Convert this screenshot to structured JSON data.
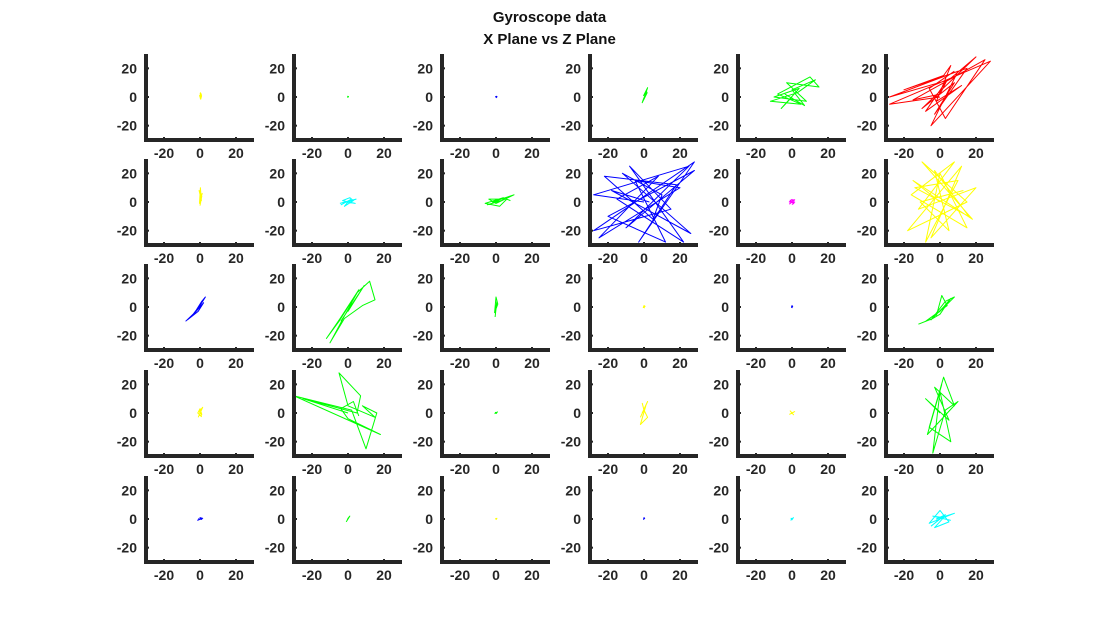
{
  "figure": {
    "title_line1": "Gyroscope data",
    "title_line2": "X Plane vs Z Plane"
  },
  "colors": {
    "yellow": "#ffff00",
    "green": "#00ff00",
    "blue": "#0000ff",
    "red": "#ff0000",
    "cyan": "#00ffff",
    "magenta": "#ff00ff",
    "axis": "#262626"
  },
  "axes_common": {
    "xlim": [
      -30,
      30
    ],
    "ylim": [
      -30,
      30
    ],
    "xticks": [
      -20,
      0,
      20
    ],
    "yticks": [
      -20,
      0,
      20
    ],
    "xtick_labels": [
      "-20",
      "0",
      "20"
    ],
    "ytick_labels": [
      "20",
      "0",
      "-20"
    ],
    "box": false,
    "grid": false
  },
  "chart_data": [
    {
      "type": "line",
      "row": 1,
      "col": 1,
      "color": "yellow",
      "series": [
        {
          "x": [
            0.5,
            0.2,
            0.8,
            0.1,
            0.6,
            -0.2,
            0.4,
            0.9,
            0.1,
            0.5
          ],
          "y": [
            0.5,
            3.0,
            1.5,
            -0.8,
            2.2,
            1.0,
            -1.5,
            0.8,
            2.6,
            0.2
          ]
        }
      ]
    },
    {
      "type": "line",
      "row": 1,
      "col": 2,
      "color": "green",
      "series": [
        {
          "x": [
            -0.3,
            0.2,
            -0.1,
            0.3,
            -0.2,
            0.1
          ],
          "y": [
            0.0,
            0.4,
            -0.3,
            0.2,
            0.5,
            -0.2
          ]
        }
      ]
    },
    {
      "type": "line",
      "row": 1,
      "col": 3,
      "color": "blue",
      "series": [
        {
          "x": [
            -0.4,
            0.3,
            0.1,
            0.6,
            -0.2,
            0.4
          ],
          "y": [
            0.0,
            0.5,
            -0.4,
            0.2,
            0.3,
            -0.1
          ]
        }
      ]
    },
    {
      "type": "line",
      "row": 1,
      "col": 4,
      "color": "green",
      "series": [
        {
          "x": [
            -0.5,
            1.5,
            -0.2,
            2.0,
            0.3,
            -1.0,
            1.8,
            0.0,
            -0.8,
            1.0
          ],
          "y": [
            -2.0,
            4.0,
            1.0,
            6.5,
            0.0,
            -4.0,
            3.0,
            -1.5,
            -3.0,
            2.0
          ]
        }
      ]
    },
    {
      "type": "line",
      "row": 1,
      "col": 5,
      "color": "green",
      "series": [
        {
          "x": [
            0,
            -6,
            4,
            -10,
            8,
            -3,
            15,
            10,
            -8,
            5,
            -12,
            3,
            13,
            0,
            7,
            -4
          ],
          "y": [
            0,
            -8,
            6,
            0,
            -3,
            10,
            7,
            14,
            2,
            -5,
            -3,
            3,
            12,
            5,
            -6,
            2
          ]
        }
      ]
    },
    {
      "type": "line",
      "row": 1,
      "col": 6,
      "color": "red",
      "series": [
        {
          "x": [
            0,
            -28,
            28,
            -5,
            10,
            -28,
            5,
            20,
            -10,
            8,
            -3,
            15,
            -20,
            2,
            6,
            -2,
            12,
            -8,
            4,
            0,
            -15,
            25,
            3,
            -6,
            8
          ],
          "y": [
            0,
            -5,
            25,
            -20,
            18,
            0,
            12,
            28,
            -8,
            10,
            -12,
            20,
            5,
            15,
            22,
            -3,
            8,
            -10,
            12,
            2,
            -2,
            26,
            -15,
            6,
            18
          ]
        }
      ]
    },
    {
      "type": "line",
      "row": 2,
      "col": 1,
      "color": "yellow",
      "series": [
        {
          "x": [
            0.0,
            1.0,
            -0.5,
            0.8,
            0.2,
            -0.3,
            1.2,
            0.4
          ],
          "y": [
            -2.5,
            4.0,
            8.0,
            1.0,
            10.0,
            -1.0,
            6.0,
            2.0
          ]
        }
      ]
    },
    {
      "type": "line",
      "row": 2,
      "col": 2,
      "color": "cyan",
      "series": [
        {
          "x": [
            -4,
            2,
            -1,
            4,
            -3,
            1,
            3,
            -2,
            0,
            4.5,
            -4.5
          ],
          "y": [
            -2,
            2,
            0,
            -1,
            1,
            3,
            1,
            -3,
            0,
            2,
            -1
          ]
        }
      ]
    },
    {
      "type": "line",
      "row": 2,
      "col": 3,
      "color": "green",
      "series": [
        {
          "x": [
            -5,
            3,
            -2,
            10,
            0,
            -4,
            6,
            2,
            -6,
            4,
            8
          ],
          "y": [
            -2,
            1,
            0,
            5,
            -1,
            2,
            2,
            -3,
            -1,
            3,
            1
          ]
        }
      ]
    },
    {
      "type": "line",
      "row": 2,
      "col": 4,
      "color": "blue",
      "series": [
        {
          "x": [
            0,
            -28,
            25,
            -10,
            28,
            -20,
            12,
            -5,
            20,
            -25,
            8,
            -15,
            22,
            -8,
            15,
            -28,
            28,
            -3,
            18,
            -22,
            5,
            10,
            -12,
            26,
            -18,
            3
          ],
          "y": [
            0,
            5,
            25,
            -18,
            22,
            -10,
            -28,
            15,
            10,
            -25,
            18,
            2,
            -28,
            25,
            -5,
            -20,
            28,
            -28,
            12,
            18,
            -12,
            5,
            20,
            -22,
            8,
            0
          ]
        }
      ]
    },
    {
      "type": "line",
      "row": 2,
      "col": 5,
      "color": "magenta",
      "series": [
        {
          "x": [
            -1.5,
            1.5,
            -1.0,
            1.0,
            0.0,
            -1.5,
            1.5,
            0.0
          ],
          "y": [
            -1.5,
            1.5,
            1.2,
            -1.2,
            1.8,
            0.0,
            0.0,
            -1.8
          ]
        }
      ]
    },
    {
      "type": "line",
      "row": 2,
      "col": 6,
      "color": "yellow",
      "series": [
        {
          "x": [
            0,
            -15,
            18,
            -10,
            15,
            -18,
            12,
            -5,
            20,
            -12,
            8,
            -16,
            15,
            0,
            -8,
            10,
            -14,
            16,
            -3,
            5,
            -11,
            13
          ],
          "y": [
            0,
            15,
            -12,
            28,
            0,
            -20,
            25,
            -25,
            10,
            -5,
            28,
            5,
            -18,
            20,
            -28,
            15,
            10,
            -10,
            22,
            -20,
            0,
            8
          ]
        }
      ]
    },
    {
      "type": "line",
      "row": 3,
      "col": 1,
      "color": "blue",
      "series": [
        {
          "x": [
            -8,
            -3,
            0,
            3,
            1,
            -2,
            -5,
            0,
            2,
            -1,
            -7,
            -4
          ],
          "y": [
            -10,
            -4,
            1,
            7,
            4,
            -2,
            -7,
            0,
            3,
            -3,
            -9,
            -6
          ]
        }
      ]
    },
    {
      "type": "line",
      "row": 3,
      "col": 2,
      "color": "green",
      "series": [
        {
          "x": [
            0,
            -12,
            -5,
            5,
            12,
            15,
            8,
            -2,
            -10,
            2,
            6,
            -8,
            3,
            0,
            9,
            -4
          ],
          "y": [
            0,
            -22,
            -10,
            10,
            18,
            5,
            1,
            -8,
            -25,
            3,
            12,
            -15,
            6,
            -3,
            15,
            -10
          ]
        }
      ]
    },
    {
      "type": "line",
      "row": 3,
      "col": 3,
      "color": "green",
      "series": [
        {
          "x": [
            -0.5,
            0.5,
            -0.2,
            1.0,
            0.0,
            -0.8,
            0.4
          ],
          "y": [
            -7.0,
            4.0,
            -2.0,
            2.0,
            7.0,
            -4.0,
            0.0
          ]
        }
      ]
    },
    {
      "type": "line",
      "row": 3,
      "col": 4,
      "color": "yellow",
      "series": [
        {
          "x": [
            -0.6,
            0.6,
            0.0,
            -0.3,
            0.4
          ],
          "y": [
            -0.5,
            0.5,
            1.0,
            0.0,
            -0.8
          ]
        }
      ]
    },
    {
      "type": "line",
      "row": 3,
      "col": 5,
      "color": "blue",
      "series": [
        {
          "x": [
            -0.4,
            0.4,
            0.0,
            -0.3,
            0.3
          ],
          "y": [
            -0.5,
            0.4,
            1.0,
            0.0,
            -0.6
          ]
        }
      ]
    },
    {
      "type": "line",
      "row": 3,
      "col": 6,
      "color": "green",
      "series": [
        {
          "x": [
            -12,
            -4,
            0,
            6,
            2,
            -5,
            3,
            8,
            0,
            -8,
            4,
            1,
            -2
          ],
          "y": [
            -12,
            -8,
            -5,
            6,
            0,
            -9,
            4,
            7,
            -3,
            -10,
            1,
            8,
            -6
          ]
        }
      ]
    },
    {
      "type": "line",
      "row": 4,
      "col": 1,
      "color": "yellow",
      "series": [
        {
          "x": [
            -1.0,
            1.5,
            -0.5,
            1.0,
            0.0,
            -1.2,
            0.8,
            0.3
          ],
          "y": [
            -3.0,
            4.0,
            1.0,
            -1.0,
            3.0,
            0.0,
            -2.5,
            2.0
          ]
        }
      ]
    },
    {
      "type": "line",
      "row": 4,
      "col": 2,
      "color": "green",
      "series": [
        {
          "x": [
            0,
            -25,
            5,
            7,
            -5,
            0,
            15,
            8,
            16,
            10,
            2,
            -30,
            18,
            0,
            -4,
            3,
            6
          ],
          "y": [
            0,
            10,
            0,
            12,
            28,
            5,
            -3,
            5,
            0,
            -25,
            2,
            12,
            -15,
            -4,
            3,
            8,
            -2
          ]
        }
      ]
    },
    {
      "type": "line",
      "row": 4,
      "col": 3,
      "color": "green",
      "series": [
        {
          "x": [
            -0.8,
            0.8,
            0.2,
            -0.4,
            0.6
          ],
          "y": [
            -0.5,
            0.8,
            -0.3,
            0.4,
            0.0
          ]
        }
      ]
    },
    {
      "type": "line",
      "row": 4,
      "col": 4,
      "color": "yellow",
      "series": [
        {
          "x": [
            -2,
            2,
            -1,
            1,
            -2,
            2,
            0,
            -1
          ],
          "y": [
            -3,
            8,
            0,
            5,
            -8,
            -3,
            2,
            7
          ]
        }
      ]
    },
    {
      "type": "line",
      "row": 4,
      "col": 5,
      "color": "yellow",
      "series": [
        {
          "x": [
            -1.5,
            1.5,
            0.0,
            -1.0,
            1.0
          ],
          "y": [
            -1.0,
            1.0,
            0.0,
            1.5,
            -1.5
          ]
        }
      ]
    },
    {
      "type": "line",
      "row": 4,
      "col": 6,
      "color": "green",
      "series": [
        {
          "x": [
            0,
            -8,
            5,
            -3,
            8,
            2,
            -6,
            6,
            0,
            -4,
            3,
            10,
            -7,
            1
          ],
          "y": [
            0,
            10,
            -5,
            18,
            5,
            25,
            -10,
            -20,
            15,
            -28,
            2,
            8,
            -15,
            20
          ]
        }
      ]
    },
    {
      "type": "line",
      "row": 5,
      "col": 1,
      "color": "blue",
      "series": [
        {
          "x": [
            -1.5,
            1.5,
            0.0,
            1.0,
            -1.0
          ],
          "y": [
            -1.0,
            0.5,
            1.0,
            -0.3,
            0.2
          ]
        }
      ]
    },
    {
      "type": "line",
      "row": 5,
      "col": 2,
      "color": "green",
      "series": [
        {
          "x": [
            -1.0,
            1.0,
            0.0,
            -0.5,
            0.5
          ],
          "y": [
            -2.0,
            2.0,
            0.5,
            -1.0,
            1.0
          ]
        }
      ]
    },
    {
      "type": "line",
      "row": 5,
      "col": 3,
      "color": "yellow",
      "series": [
        {
          "x": [
            -0.5,
            0.5,
            0.0
          ],
          "y": [
            0.0,
            0.5,
            -0.5
          ]
        }
      ]
    },
    {
      "type": "line",
      "row": 5,
      "col": 4,
      "color": "blue",
      "series": [
        {
          "x": [
            -0.4,
            0.4,
            0.0,
            -0.2
          ],
          "y": [
            -0.5,
            0.5,
            1.0,
            0.0
          ]
        }
      ]
    },
    {
      "type": "line",
      "row": 5,
      "col": 5,
      "color": "cyan",
      "series": [
        {
          "x": [
            -0.8,
            0.8,
            0.0,
            -0.5,
            0.5
          ],
          "y": [
            -1.0,
            1.0,
            -0.5,
            0.5,
            0.0
          ]
        }
      ]
    },
    {
      "type": "line",
      "row": 5,
      "col": 6,
      "color": "cyan",
      "series": [
        {
          "x": [
            -5,
            3,
            -2,
            8,
            -6,
            0,
            5,
            -3,
            2,
            -4,
            6
          ],
          "y": [
            -5,
            3,
            0,
            4,
            -3,
            6,
            -2,
            -6,
            1,
            2,
            -1
          ]
        }
      ]
    }
  ]
}
